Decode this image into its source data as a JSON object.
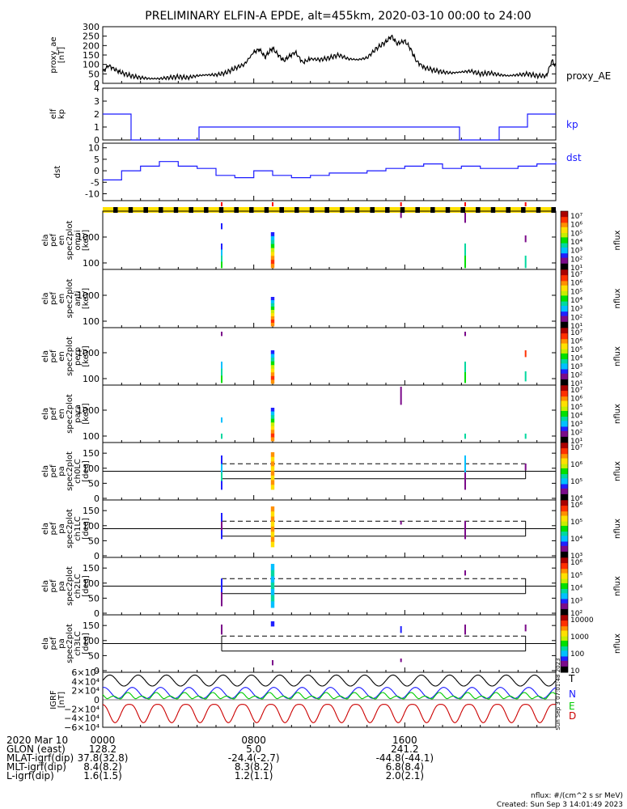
{
  "title": "PRELIMINARY ELFIN-A EPDE, alt=455km, 2020-03-10 00:00 to 24:00",
  "chart_data": [
    {
      "type": "line",
      "id": "proxy_ae",
      "ylabel": [
        "proxy_ae",
        "[nT]"
      ],
      "yticks": [
        "300",
        "250",
        "200",
        "150",
        "100",
        "50",
        "0"
      ],
      "ylim": [
        0,
        300
      ],
      "legend": "proxy_AE",
      "legend_color": "#000000",
      "series": [
        {
          "name": "proxy_AE",
          "x": [
            0,
            0.3,
            0.7,
            1,
            1.5,
            2,
            2.5,
            3,
            3.5,
            4,
            4.5,
            5,
            5.5,
            6,
            6.5,
            7,
            7.5,
            8,
            8.3,
            8.6,
            8.8,
            9,
            9.3,
            9.6,
            9.9,
            10.2,
            10.6,
            11,
            11.5,
            12,
            12.5,
            13,
            13.5,
            14,
            14.5,
            15,
            15.3,
            15.6,
            16,
            16.3,
            16.6,
            17,
            17.5,
            18,
            18.5,
            19,
            19.5,
            20,
            20.5,
            21,
            21.5,
            22,
            22.5,
            23,
            23.5,
            23.8,
            24
          ],
          "y": [
            60,
            95,
            70,
            55,
            40,
            30,
            25,
            25,
            30,
            35,
            30,
            40,
            45,
            45,
            55,
            80,
            100,
            165,
            180,
            140,
            165,
            185,
            150,
            120,
            145,
            165,
            110,
            130,
            125,
            135,
            150,
            130,
            125,
            135,
            185,
            220,
            250,
            210,
            225,
            185,
            120,
            85,
            70,
            60,
            55,
            60,
            65,
            50,
            55,
            45,
            40,
            45,
            50,
            40,
            40,
            120,
            90
          ]
        }
      ]
    },
    {
      "type": "line",
      "id": "elf_kp",
      "ylabel": [
        "elf",
        "kp"
      ],
      "yticks": [
        "4",
        "3",
        "2",
        "1",
        "0"
      ],
      "ylim": [
        0,
        4
      ],
      "legend": "kp",
      "legend_color": "#1a1aff",
      "series": [
        {
          "name": "kp",
          "x": [
            0,
            1.5,
            1.5,
            5.1,
            5.1,
            18.9,
            18.9,
            21,
            21,
            22.5,
            22.5,
            24
          ],
          "y": [
            2,
            2,
            0,
            0,
            1,
            1,
            0,
            0,
            1,
            1,
            2,
            2
          ]
        }
      ]
    },
    {
      "type": "line",
      "id": "dst",
      "ylabel": [
        "dst"
      ],
      "yticks": [
        "10",
        "5",
        "0",
        "-5",
        "-10"
      ],
      "ylim": [
        -13,
        12
      ],
      "legend": "dst",
      "legend_color": "#1a1aff",
      "series": [
        {
          "name": "dst",
          "x": [
            0,
            1,
            2,
            3,
            4,
            5,
            6,
            7,
            8,
            9,
            10,
            11,
            12,
            13,
            14,
            15,
            16,
            17,
            18,
            19,
            20,
            21,
            22,
            23,
            24
          ],
          "y": [
            -4,
            0,
            2,
            4,
            2,
            1,
            -2,
            -3,
            0,
            -2,
            -3,
            -2,
            -1,
            -1,
            0,
            1,
            2,
            3,
            1,
            2,
            1,
            1,
            2,
            3,
            4
          ]
        }
      ]
    },
    {
      "type": "heatmap",
      "id": "spec_omni",
      "ylabel": [
        "ela",
        "pef",
        "en",
        "spec2plot",
        "omni",
        "[keV]"
      ],
      "yticks": [
        "1000",
        "100"
      ],
      "colorbar": {
        "label": "nflux",
        "ticks": [
          "10⁷",
          "10⁶",
          "10⁵",
          "10⁴",
          "10³",
          "10²",
          "10¹"
        ]
      }
    },
    {
      "type": "heatmap",
      "id": "spec_anti",
      "ylabel": [
        "ela",
        "pef",
        "en",
        "spec2plot",
        "anti",
        "[keV]"
      ],
      "yticks": [
        "1000",
        "100"
      ],
      "colorbar": {
        "label": "nflux",
        "ticks": [
          "10⁷",
          "10⁶",
          "10⁵",
          "10⁴",
          "10³",
          "10²",
          "10¹"
        ]
      }
    },
    {
      "type": "heatmap",
      "id": "spec_perp",
      "ylabel": [
        "ela",
        "pef",
        "en",
        "spec2plot",
        "perp",
        "[keV]"
      ],
      "yticks": [
        "1000",
        "100"
      ],
      "colorbar": {
        "label": "nflux",
        "ticks": [
          "10⁷",
          "10⁶",
          "10⁵",
          "10⁴",
          "10³",
          "10²",
          "10¹"
        ]
      }
    },
    {
      "type": "heatmap",
      "id": "spec_para",
      "ylabel": [
        "ela",
        "pef",
        "en",
        "spec2plot",
        "para",
        "[keV]"
      ],
      "yticks": [
        "1000",
        "100"
      ],
      "colorbar": {
        "label": "nflux",
        "ticks": [
          "10⁷",
          "10⁶",
          "10⁵",
          "10⁴",
          "10³",
          "10²",
          "10¹"
        ]
      }
    },
    {
      "type": "heatmap",
      "id": "pa_ch0",
      "ylabel": [
        "ela",
        "pef",
        "pa",
        "spec2plot",
        "ch0LC",
        "[deg]"
      ],
      "yticks": [
        "150",
        "100",
        "50",
        "0"
      ],
      "colorbar": {
        "label": "nflux",
        "ticks": [
          "10⁷",
          "10⁶",
          "10⁵",
          "10⁴"
        ]
      }
    },
    {
      "type": "heatmap",
      "id": "pa_ch1",
      "ylabel": [
        "ela",
        "pef",
        "pa",
        "spec2plot",
        "ch1LC",
        "[deg]"
      ],
      "yticks": [
        "150",
        "100",
        "50",
        "0"
      ],
      "colorbar": {
        "label": "nflux",
        "ticks": [
          "10⁶",
          "10⁵",
          "10⁴",
          "10³"
        ]
      }
    },
    {
      "type": "heatmap",
      "id": "pa_ch2",
      "ylabel": [
        "ela",
        "pef",
        "pa",
        "spec2plot",
        "ch2LC",
        "[deg]"
      ],
      "yticks": [
        "150",
        "100",
        "50",
        "0"
      ],
      "colorbar": {
        "label": "nflux",
        "ticks": [
          "10⁶",
          "10⁵",
          "10⁴",
          "10³",
          "10²"
        ]
      }
    },
    {
      "type": "heatmap",
      "id": "pa_ch3",
      "ylabel": [
        "ela",
        "pef",
        "pa",
        "spec2plot",
        "ch3LC",
        "[deg]"
      ],
      "yticks": [
        "150",
        "100",
        "50",
        "0"
      ],
      "colorbar": {
        "label": "nflux",
        "ticks": [
          "10000",
          "1000",
          "100",
          "10"
        ]
      }
    },
    {
      "type": "line",
      "id": "igrf",
      "ylabel": [
        "IGRF",
        "[nT]"
      ],
      "yticks": [
        "6×10⁴",
        "4×10⁴",
        "2×10⁴",
        "0",
        "−2×10⁴",
        "−4×10⁴",
        "−6×10⁴"
      ],
      "ylim": [
        -60000,
        60000
      ],
      "legend": [
        "T",
        "N",
        "E",
        "D"
      ],
      "legend_colors": [
        "#000000",
        "#1a1aff",
        "#00cc00",
        "#cc0000"
      ]
    }
  ],
  "spectro_colors": [
    "#000000",
    "#7b0a8a",
    "#2020ff",
    "#00c0ff",
    "#00d8a0",
    "#00e000",
    "#c8ee00",
    "#ffe000",
    "#ff9000",
    "#ff3000",
    "#aa0000"
  ],
  "orbit_bar": {
    "colors": [
      "#000000",
      "#ffe000"
    ],
    "marker_color": "#ff0000"
  },
  "xaxis": {
    "time_ticks": [
      "0000",
      "0800",
      "1600"
    ],
    "rows": [
      {
        "label": "2020 Mar 10",
        "values": [
          "0000",
          "0800",
          "1600"
        ]
      },
      {
        "label": "GLON (east)",
        "values": [
          "128.2",
          "5.0",
          "241.2"
        ]
      },
      {
        "label": "MLAT-igrf(dip)",
        "values": [
          "37.8(32.8)",
          "-24.4(-2.7)",
          "-44.8(-44.1)"
        ]
      },
      {
        "label": "MLT-igrf(dip)",
        "values": [
          "8.4(8.2)",
          "8.3(8.2)",
          "6.8(8.4)"
        ]
      },
      {
        "label": "L-igrf(dip)",
        "values": [
          "1.6(1.5)",
          "1.2(1.1)",
          "2.0(2.1)"
        ]
      }
    ]
  },
  "footer": {
    "units": "nflux: #/(cm^2 s sr MeV)",
    "created": "Created: Sun Sep  3 14:01:49 2023",
    "side_stamp": "Sun Sep  3 07:01:48 2023"
  }
}
